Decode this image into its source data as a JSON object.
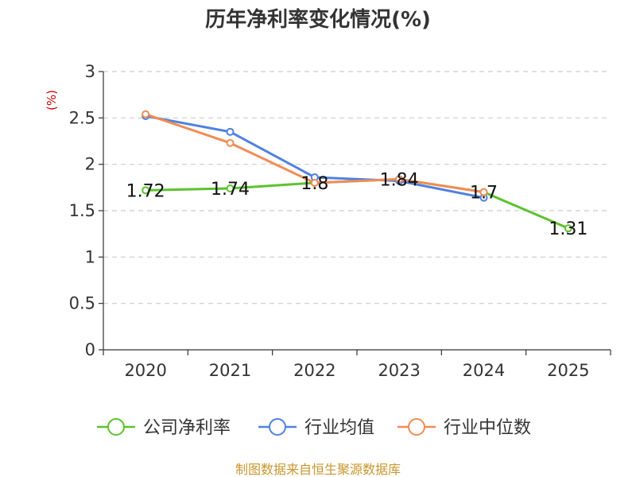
{
  "chart_data": {
    "type": "line",
    "title": "历年净利率变化情况(%)",
    "ylabel": "(%)",
    "xlabel": "",
    "categories": [
      "2020",
      "2021",
      "2022",
      "2023",
      "2024",
      "2025"
    ],
    "ylim": [
      0,
      3
    ],
    "yticks": [
      0,
      0.5,
      1,
      1.5,
      2,
      2.5,
      3
    ],
    "ytick_labels": [
      "0",
      "0.5",
      "1",
      "1.5",
      "2",
      "2.5",
      "3"
    ],
    "grid": true,
    "legend_position": "bottom",
    "series": [
      {
        "name": "公司净利率",
        "color": "#5cc22e",
        "values": [
          1.72,
          1.74,
          1.8,
          1.84,
          1.7,
          1.31
        ],
        "labels": [
          "1.72",
          "1.74",
          "1.8",
          "1.84",
          "1.7",
          "1.31"
        ]
      },
      {
        "name": "行业均值",
        "color": "#4f81e0",
        "values": [
          2.52,
          2.35,
          1.86,
          1.82,
          1.64,
          null
        ]
      },
      {
        "name": "行业中位数",
        "color": "#f28b55",
        "values": [
          2.54,
          2.23,
          1.8,
          1.84,
          1.7,
          null
        ]
      }
    ],
    "source": "制图数据来自恒生聚源数据库"
  }
}
